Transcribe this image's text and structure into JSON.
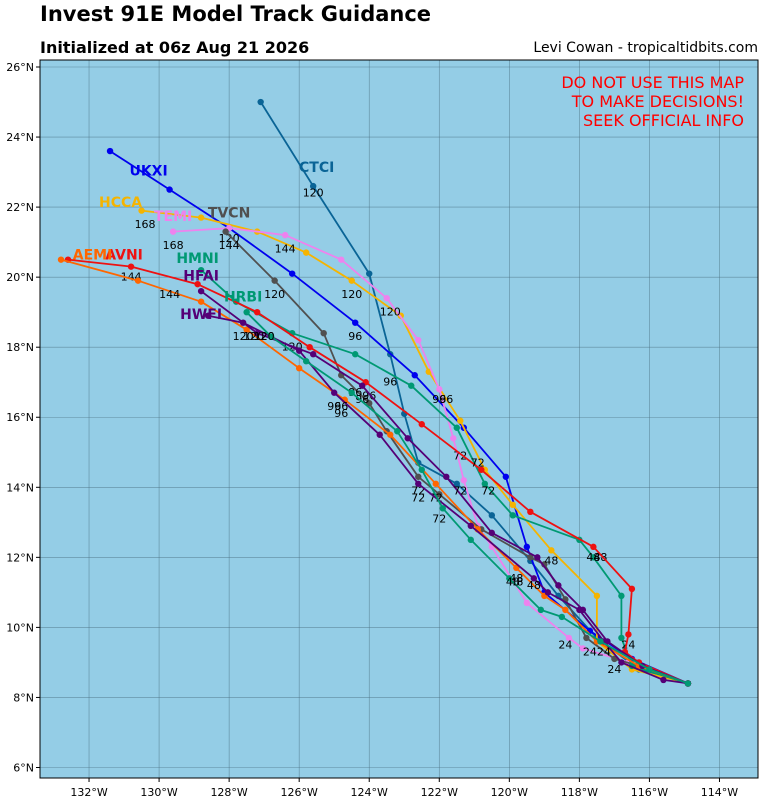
{
  "header": {
    "title": "Invest 91E Model Track Guidance",
    "subtitle": "Initialized at 06z Aug 21 2026",
    "credit": "Levi Cowan - tropicaltidbits.com"
  },
  "warning": {
    "lines": [
      "DO NOT USE THIS MAP",
      "TO MAKE DECISIONS!",
      "SEEK OFFICIAL INFO"
    ],
    "color": "#ff0000"
  },
  "map": {
    "ocean_color": "#94cde6",
    "grid_color": "#4a6f80",
    "lon_range": [
      -133.4,
      -112.9
    ],
    "lat_range": [
      5.7,
      26.2
    ],
    "lon_ticks": [
      -132,
      -130,
      -128,
      -126,
      -124,
      -122,
      -120,
      -118,
      -116,
      -114
    ],
    "lon_tick_labels": [
      "132°W",
      "130°W",
      "128°W",
      "126°W",
      "124°W",
      "122°W",
      "120°W",
      "118°W",
      "116°W",
      "114°W"
    ],
    "lat_ticks": [
      6,
      8,
      10,
      12,
      14,
      16,
      18,
      20,
      22,
      24,
      26
    ],
    "lat_tick_labels": [
      "6°N",
      "8°N",
      "10°N",
      "12°N",
      "14°N",
      "16°N",
      "18°N",
      "20°N",
      "22°N",
      "24°N",
      "26°N"
    ]
  },
  "tracks": [
    {
      "name": "CTCI",
      "color": "#0a6496",
      "label_at": [
        -125.5,
        23.0
      ],
      "points": [
        [
          -114.9,
          8.4
        ],
        [
          -116.3,
          8.8
        ],
        [
          -117.5,
          9.7
        ],
        [
          -118.6,
          10.9
        ],
        [
          -119.4,
          11.9
        ],
        [
          -120.5,
          13.2
        ],
        [
          -121.5,
          14.1
        ],
        [
          -122.6,
          14.7
        ],
        [
          -123.0,
          16.1
        ],
        [
          -123.4,
          17.8
        ],
        [
          -124.0,
          20.1
        ],
        [
          -125.6,
          22.6
        ],
        [
          -127.1,
          25.0
        ]
      ],
      "taus": [
        {
          "text": "120",
          "at": [
            -125.6,
            22.3
          ]
        }
      ]
    },
    {
      "name": "UKXI",
      "color": "#0000ee",
      "label_at": [
        -130.3,
        22.9
      ],
      "points": [
        [
          -114.9,
          8.4
        ],
        [
          -116.5,
          9.1
        ],
        [
          -117.7,
          9.9
        ],
        [
          -119.0,
          11.0
        ],
        [
          -119.5,
          12.3
        ],
        [
          -120.1,
          14.3
        ],
        [
          -121.3,
          15.7
        ],
        [
          -122.7,
          17.2
        ],
        [
          -124.4,
          18.7
        ],
        [
          -126.2,
          20.1
        ],
        [
          -128.0,
          21.4
        ],
        [
          -129.7,
          22.5
        ],
        [
          -131.4,
          23.6
        ]
      ],
      "taus": [
        {
          "text": "96",
          "at": [
            -124.4,
            18.2
          ]
        },
        {
          "text": "120",
          "at": [
            -128.0,
            21.0
          ]
        }
      ]
    },
    {
      "name": "HCCA",
      "color": "#f5b400",
      "label_at": [
        -131.1,
        22.0
      ],
      "points": [
        [
          -114.9,
          8.4
        ],
        [
          -116.5,
          8.8
        ],
        [
          -117.5,
          9.6
        ],
        [
          -117.5,
          10.9
        ],
        [
          -118.8,
          12.2
        ],
        [
          -119.9,
          13.5
        ],
        [
          -120.7,
          14.5
        ],
        [
          -121.4,
          15.9
        ],
        [
          -122.3,
          17.3
        ],
        [
          -123.1,
          18.9
        ],
        [
          -124.5,
          19.9
        ],
        [
          -125.8,
          20.7
        ],
        [
          -127.2,
          21.3
        ],
        [
          -128.8,
          21.7
        ],
        [
          -130.5,
          21.9
        ]
      ],
      "taus": [
        {
          "text": "96",
          "at": [
            -123.4,
            16.9
          ]
        },
        {
          "text": "120",
          "at": [
            -124.5,
            19.4
          ]
        },
        {
          "text": "168",
          "at": [
            -130.4,
            21.4
          ]
        }
      ]
    },
    {
      "name": "TEMI",
      "color": "#ee82ee",
      "label_at": [
        -129.6,
        21.6
      ],
      "points": [
        [
          -114.9,
          8.4
        ],
        [
          -116.6,
          9.0
        ],
        [
          -117.9,
          9.4
        ],
        [
          -118.3,
          9.7
        ],
        [
          -119.5,
          10.7
        ],
        [
          -120.5,
          12.3
        ],
        [
          -120.9,
          12.9
        ],
        [
          -121.3,
          14.2
        ],
        [
          -121.6,
          15.4
        ],
        [
          -122.0,
          16.8
        ],
        [
          -122.6,
          18.2
        ],
        [
          -123.5,
          19.4
        ],
        [
          -124.8,
          20.5
        ],
        [
          -126.4,
          21.2
        ],
        [
          -128.0,
          21.4
        ],
        [
          -129.6,
          21.3
        ]
      ],
      "taus": [
        {
          "text": "24",
          "at": [
            -118.4,
            9.4
          ]
        },
        {
          "text": "48",
          "at": [
            -119.8,
            11.3
          ]
        },
        {
          "text": "72",
          "at": [
            -121.4,
            14.8
          ]
        },
        {
          "text": "96",
          "at": [
            -122.0,
            16.4
          ]
        },
        {
          "text": "120",
          "at": [
            -123.4,
            18.9
          ]
        },
        {
          "text": "144",
          "at": [
            -126.4,
            20.7
          ]
        },
        {
          "text": "168",
          "at": [
            -129.6,
            20.8
          ]
        }
      ]
    },
    {
      "name": "TVCN",
      "color": "#505050",
      "label_at": [
        -128.0,
        21.7
      ],
      "points": [
        [
          -114.9,
          8.4
        ],
        [
          -116.3,
          8.9
        ],
        [
          -117.0,
          9.1
        ],
        [
          -117.8,
          9.7
        ],
        [
          -118.4,
          10.8
        ],
        [
          -119.0,
          11.8
        ],
        [
          -119.4,
          12.0
        ],
        [
          -120.8,
          12.8
        ],
        [
          -122.0,
          13.8
        ],
        [
          -122.6,
          14.3
        ],
        [
          -123.5,
          15.6
        ],
        [
          -124.0,
          16.4
        ],
        [
          -124.8,
          17.2
        ],
        [
          -125.3,
          18.4
        ],
        [
          -126.7,
          19.9
        ],
        [
          -128.1,
          21.3
        ]
      ],
      "taus": [
        {
          "text": "24",
          "at": [
            -117.0,
            8.7
          ]
        },
        {
          "text": "48",
          "at": [
            -118.8,
            11.8
          ]
        },
        {
          "text": "72",
          "at": [
            -122.6,
            13.8
          ]
        },
        {
          "text": "96",
          "at": [
            -124.0,
            16.5
          ]
        },
        {
          "text": "120",
          "at": [
            -126.7,
            19.4
          ]
        },
        {
          "text": "144",
          "at": [
            -128.0,
            20.8
          ]
        }
      ]
    },
    {
      "name": "HMNI",
      "color": "#009973",
      "label_at": [
        -128.9,
        20.4
      ],
      "points": [
        [
          -114.9,
          8.4
        ],
        [
          -116.5,
          8.9
        ],
        [
          -116.8,
          9.7
        ],
        [
          -116.8,
          10.9
        ],
        [
          -117.6,
          12.0
        ],
        [
          -118.0,
          12.5
        ],
        [
          -119.9,
          13.2
        ],
        [
          -120.7,
          14.1
        ],
        [
          -121.5,
          15.7
        ],
        [
          -122.8,
          16.9
        ],
        [
          -124.4,
          17.8
        ],
        [
          -126.2,
          18.4
        ],
        [
          -127.8,
          19.3
        ],
        [
          -128.8,
          20.2
        ]
      ],
      "taus": [
        {
          "text": "24",
          "at": [
            -116.6,
            9.4
          ]
        },
        {
          "text": "48",
          "at": [
            -117.4,
            11.9
          ]
        },
        {
          "text": "72",
          "at": [
            -120.6,
            13.8
          ]
        },
        {
          "text": "96",
          "at": [
            -121.8,
            16.4
          ]
        },
        {
          "text": "120",
          "at": [
            -126.2,
            17.9
          ]
        }
      ]
    },
    {
      "name": "AVNI",
      "color": "#ee1111",
      "label_at": [
        -131.0,
        20.5
      ],
      "points": [
        [
          -114.9,
          8.4
        ],
        [
          -116.3,
          9.0
        ],
        [
          -116.7,
          9.3
        ],
        [
          -116.6,
          9.8
        ],
        [
          -116.5,
          11.1
        ],
        [
          -117.6,
          12.3
        ],
        [
          -119.4,
          13.3
        ],
        [
          -120.8,
          14.5
        ],
        [
          -122.5,
          15.8
        ],
        [
          -124.1,
          17.0
        ],
        [
          -125.7,
          18.0
        ],
        [
          -127.2,
          19.0
        ],
        [
          -128.9,
          19.8
        ],
        [
          -130.8,
          20.3
        ],
        [
          -132.6,
          20.5
        ]
      ],
      "taus": [
        {
          "text": "48",
          "at": [
            -117.6,
            11.9
          ]
        },
        {
          "text": "72",
          "at": [
            -120.9,
            14.6
          ]
        },
        {
          "text": "96",
          "at": [
            -124.4,
            16.6
          ]
        },
        {
          "text": "144",
          "at": [
            -130.8,
            19.9
          ]
        }
      ]
    },
    {
      "name": "AEMI",
      "color": "#ff6600",
      "label_at": [
        -131.9,
        20.5
      ],
      "points": [
        [
          -114.9,
          8.4
        ],
        [
          -116.3,
          8.9
        ],
        [
          -117.5,
          9.6
        ],
        [
          -118.4,
          10.5
        ],
        [
          -119.0,
          10.9
        ],
        [
          -119.8,
          11.7
        ],
        [
          -120.9,
          12.8
        ],
        [
          -122.1,
          14.1
        ],
        [
          -123.4,
          15.5
        ],
        [
          -124.7,
          16.5
        ],
        [
          -126.0,
          17.4
        ],
        [
          -127.5,
          18.5
        ],
        [
          -128.8,
          19.3
        ],
        [
          -130.6,
          19.9
        ],
        [
          -132.8,
          20.5
        ]
      ],
      "taus": [
        {
          "text": "48",
          "at": [
            -119.8,
            11.2
          ]
        },
        {
          "text": "72",
          "at": [
            -122.1,
            13.6
          ]
        },
        {
          "text": "96",
          "at": [
            -124.8,
            16.0
          ]
        },
        {
          "text": "120",
          "at": [
            -127.0,
            18.2
          ]
        },
        {
          "text": "144",
          "at": [
            -129.7,
            19.4
          ]
        }
      ]
    },
    {
      "name": "HFAI",
      "color": "#550077",
      "label_at": [
        -128.8,
        19.9
      ],
      "points": [
        [
          -114.9,
          8.4
        ],
        [
          -116.2,
          8.9
        ],
        [
          -117.2,
          9.6
        ],
        [
          -117.9,
          10.5
        ],
        [
          -118.6,
          11.2
        ],
        [
          -119.2,
          12.0
        ],
        [
          -120.5,
          12.7
        ],
        [
          -121.8,
          14.3
        ],
        [
          -122.9,
          15.4
        ],
        [
          -124.2,
          16.9
        ],
        [
          -125.6,
          17.8
        ],
        [
          -127.2,
          18.4
        ],
        [
          -128.8,
          19.6
        ]
      ],
      "taus": [
        {
          "text": "72",
          "at": [
            -121.4,
            13.8
          ]
        },
        {
          "text": "96",
          "at": [
            -124.2,
            16.4
          ]
        },
        {
          "text": "120",
          "at": [
            -127.3,
            18.2
          ]
        }
      ]
    },
    {
      "name": "HWFI",
      "color": "#550077",
      "label_at": [
        -128.8,
        18.8
      ],
      "points": [
        [
          -114.9,
          8.4
        ],
        [
          -115.6,
          8.5
        ],
        [
          -116.8,
          9.0
        ],
        [
          -117.3,
          9.6
        ],
        [
          -118.0,
          10.5
        ],
        [
          -118.9,
          11.0
        ],
        [
          -119.3,
          11.4
        ],
        [
          -121.1,
          12.9
        ],
        [
          -122.6,
          14.1
        ],
        [
          -123.7,
          15.5
        ],
        [
          -125.0,
          16.7
        ],
        [
          -126.0,
          17.9
        ],
        [
          -127.6,
          18.7
        ],
        [
          -128.6,
          18.9
        ]
      ],
      "taus": [
        {
          "text": "24",
          "at": [
            -117.3,
            9.2
          ]
        },
        {
          "text": "48",
          "at": [
            -119.3,
            11.1
          ]
        },
        {
          "text": "72",
          "at": [
            -122.6,
            13.6
          ]
        },
        {
          "text": "96",
          "at": [
            -125.0,
            16.2
          ]
        },
        {
          "text": "120",
          "at": [
            -127.6,
            18.2
          ]
        }
      ]
    },
    {
      "name": "HRBI",
      "color": "#009973",
      "label_at": [
        -127.6,
        19.3
      ],
      "points": [
        [
          -114.9,
          8.4
        ],
        [
          -116.0,
          8.8
        ],
        [
          -117.4,
          9.6
        ],
        [
          -118.5,
          10.3
        ],
        [
          -119.1,
          10.5
        ],
        [
          -120.0,
          11.4
        ],
        [
          -121.1,
          12.5
        ],
        [
          -121.9,
          13.4
        ],
        [
          -122.5,
          14.5
        ],
        [
          -123.2,
          15.6
        ],
        [
          -124.5,
          16.7
        ],
        [
          -125.8,
          17.6
        ],
        [
          -126.8,
          18.3
        ],
        [
          -127.5,
          19.0
        ]
      ],
      "taus": [
        {
          "text": "24",
          "at": [
            -117.7,
            9.2
          ]
        },
        {
          "text": "48",
          "at": [
            -119.9,
            11.2
          ]
        },
        {
          "text": "72",
          "at": [
            -122.0,
            13.0
          ]
        },
        {
          "text": "96",
          "at": [
            -124.8,
            16.2
          ]
        },
        {
          "text": "120",
          "at": [
            -127.0,
            18.2
          ]
        }
      ]
    }
  ]
}
